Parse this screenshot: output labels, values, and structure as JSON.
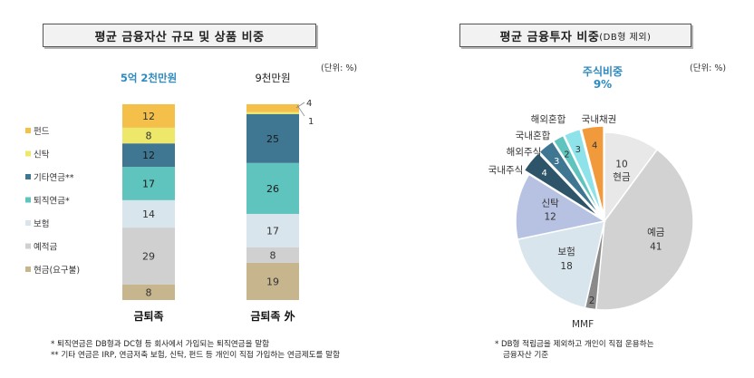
{
  "left_panel": {
    "title": "평균 금융자산 규모 및 상품 비중",
    "unit": "(단위: %)",
    "notes": [
      "* 퇴직연금은 DB형과 DC형 등 회사에서 가입되는 퇴직연금을 말함",
      "** 기타 연금은 IRP, 연금저축 보험, 신탁, 펀드 등 개인이 직접 가입하는 연금제도를 말함"
    ]
  },
  "right_panel": {
    "title": "평균 금융투자 비중",
    "title_sub": "(DB형 제외)",
    "unit": "(단위: %)",
    "stock_share_label": "주식비중",
    "stock_share_value": "9%",
    "notes": [
      "* DB형 적립금을 제외하고 개인이 직접 운용하는",
      "금융자산 기준"
    ]
  },
  "chart_data": [
    {
      "type": "bar",
      "stacked": true,
      "categories": [
        "금퇴족",
        "금퇴족 外"
      ],
      "bar_top_labels": [
        "5억 2천만원",
        "9천만원"
      ],
      "bar_top_label_colors": [
        "#2e8bc0",
        "#222222"
      ],
      "series": [
        {
          "name": "현금(요구불)",
          "values": [
            8,
            19
          ],
          "color": "#c7b58e"
        },
        {
          "name": "예적금",
          "values": [
            29,
            8
          ],
          "color": "#d0d0d0"
        },
        {
          "name": "보험",
          "values": [
            14,
            17
          ],
          "color": "#d9e5ed"
        },
        {
          "name": "퇴직연금*",
          "values": [
            17,
            26
          ],
          "color": "#5fc3be"
        },
        {
          "name": "기타연금**",
          "values": [
            12,
            25
          ],
          "color": "#3f7691"
        },
        {
          "name": "신탁",
          "values": [
            8,
            1
          ],
          "color": "#ede86a"
        },
        {
          "name": "펀드",
          "values": [
            12,
            4
          ],
          "color": "#f4c04a"
        }
      ],
      "legend_order": [
        "펀드",
        "신탁",
        "기타연금**",
        "퇴직연금*",
        "보험",
        "예적금",
        "현금(요구불)"
      ],
      "legend_position": "left"
    },
    {
      "type": "pie",
      "start_label": "현금",
      "slices": [
        {
          "label": "현금",
          "value": 10,
          "color": "#e8e8e8"
        },
        {
          "label": "예금",
          "value": 41,
          "color": "#d2d2d2"
        },
        {
          "label": "MMF",
          "value": 2,
          "color": "#8a8a8a"
        },
        {
          "label": "보험",
          "value": 18,
          "color": "#d9e5ed"
        },
        {
          "label": "신탁",
          "value": 12,
          "color": "#b7c2e2"
        },
        {
          "label": "국내주식",
          "value": 4,
          "color": "#2d5468"
        },
        {
          "label": "해외주식",
          "value": 3,
          "color": "#3f7691"
        },
        {
          "label": "국내혼합",
          "value": 2,
          "color": "#5fc3be"
        },
        {
          "label": "해외혼합",
          "value": 3,
          "color": "#8ee3eb"
        },
        {
          "label": "국내채권",
          "value": 4,
          "color": "#f19a3c"
        }
      ]
    }
  ]
}
